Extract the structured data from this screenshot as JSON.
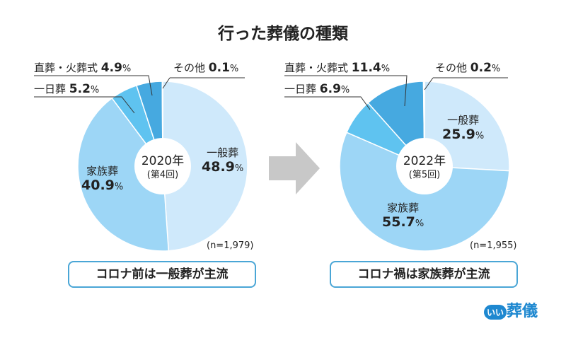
{
  "title": "行った葬儀の種類",
  "chart_data": [
    {
      "type": "pie",
      "center_label": "2020年",
      "center_sub": "(第4回)",
      "n": "(n=1,979)",
      "conclusion": "コロナ前は一般葬が主流",
      "categories": [
        "一般葬",
        "家族葬",
        "一日葬",
        "直葬・火葬式",
        "その他"
      ],
      "values": [
        48.9,
        40.9,
        5.2,
        4.9,
        0.1
      ],
      "value_labels": [
        "48.9",
        "40.9",
        "5.2",
        "4.9",
        "0.1"
      ],
      "colors": [
        "#cfe9fb",
        "#9dd6f6",
        "#5fc3f0",
        "#46a9e0",
        "#46a9e0"
      ]
    },
    {
      "type": "pie",
      "center_label": "2022年",
      "center_sub": "(第5回)",
      "n": "(n=1,955)",
      "conclusion": "コロナ禍は家族葬が主流",
      "categories": [
        "一般葬",
        "家族葬",
        "一日葬",
        "直葬・火葬式",
        "その他"
      ],
      "values": [
        25.9,
        55.7,
        6.9,
        11.4,
        0.2
      ],
      "value_labels": [
        "25.9",
        "55.7",
        "6.9",
        "11.4",
        "0.2"
      ],
      "colors": [
        "#cfe9fb",
        "#9dd6f6",
        "#5fc3f0",
        "#46a9e0",
        "#46a9e0"
      ]
    }
  ],
  "unit": "%",
  "arrow_icon": "right-arrow",
  "logo": {
    "mark": "いい",
    "text": "葬儀"
  }
}
